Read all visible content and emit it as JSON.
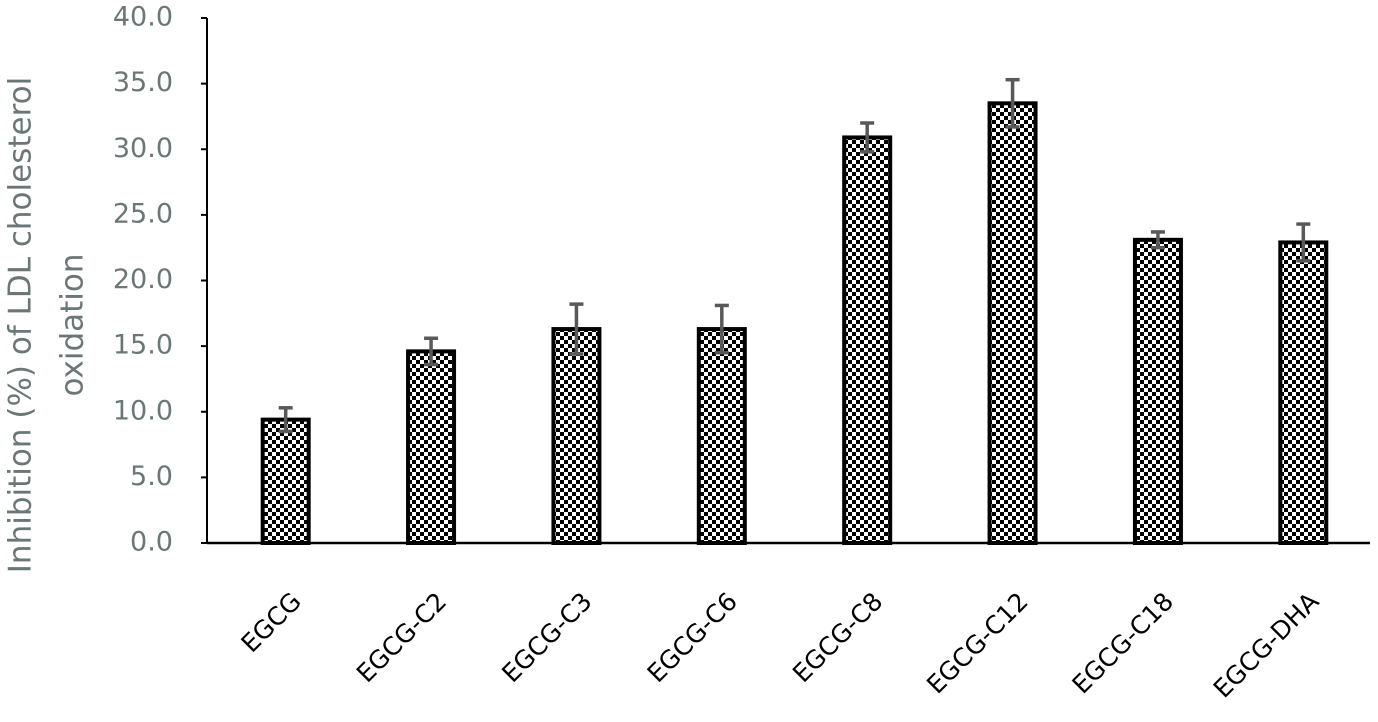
{
  "chart_data": {
    "type": "bar",
    "ylabel": [
      "Inhibition  (%) of LDL cholesterol",
      "oxidation"
    ],
    "categories": [
      "EGCG",
      "EGCG-C2",
      "EGCG-C3",
      "EGCG-C6",
      "EGCG-C8",
      "EGCG-C12",
      "EGCG-C18",
      "EGCG-DHA"
    ],
    "values": [
      9.4,
      14.6,
      16.3,
      16.3,
      30.9,
      33.5,
      23.1,
      22.9
    ],
    "errors": [
      0.9,
      1.0,
      1.9,
      1.8,
      1.1,
      1.8,
      0.6,
      1.4
    ],
    "color": "#000000",
    "error_color": "#595959",
    "ylim": [
      0,
      40
    ],
    "yticks": [
      {
        "value": 0,
        "label": "0.0"
      },
      {
        "value": 5,
        "label": "5.0"
      },
      {
        "value": 10,
        "label": "10.0"
      },
      {
        "value": 15,
        "label": "15.0"
      },
      {
        "value": 20,
        "label": "20.0"
      },
      {
        "value": 25,
        "label": "25.0"
      },
      {
        "value": 30,
        "label": "30.0"
      },
      {
        "value": 35,
        "label": "35.0"
      },
      {
        "value": 40,
        "label": "40.0"
      }
    ],
    "grid": false
  }
}
